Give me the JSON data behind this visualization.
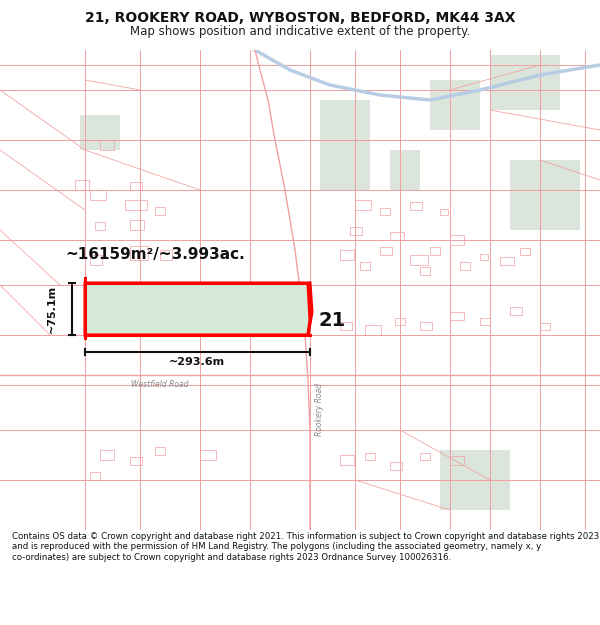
{
  "title_line1": "21, ROOKERY ROAD, WYBOSTON, BEDFORD, MK44 3AX",
  "title_line2": "Map shows position and indicative extent of the property.",
  "footer_text": "Contains OS data © Crown copyright and database right 2021. This information is subject to Crown copyright and database rights 2023 and is reproduced with the permission of HM Land Registry. The polygons (including the associated geometry, namely x, y co-ordinates) are subject to Crown copyright and database rights 2023 Ordnance Survey 100026316.",
  "map_bg": "#ffffff",
  "header_bg": "#ffffff",
  "footer_bg": "#ffffff",
  "property_fill": "#d6e8d6",
  "property_stroke": "#ff0000",
  "road_color": "#f0a0a0",
  "area_text": "~16159m²/~3.993ac.",
  "width_text": "~293.6m",
  "height_text": "~75.1m",
  "label_21": "21",
  "cadastral_color": "#f0a0a0",
  "green_patch_color": "#ccdacc",
  "road_label_color": "#888888",
  "dim_color": "#111111"
}
